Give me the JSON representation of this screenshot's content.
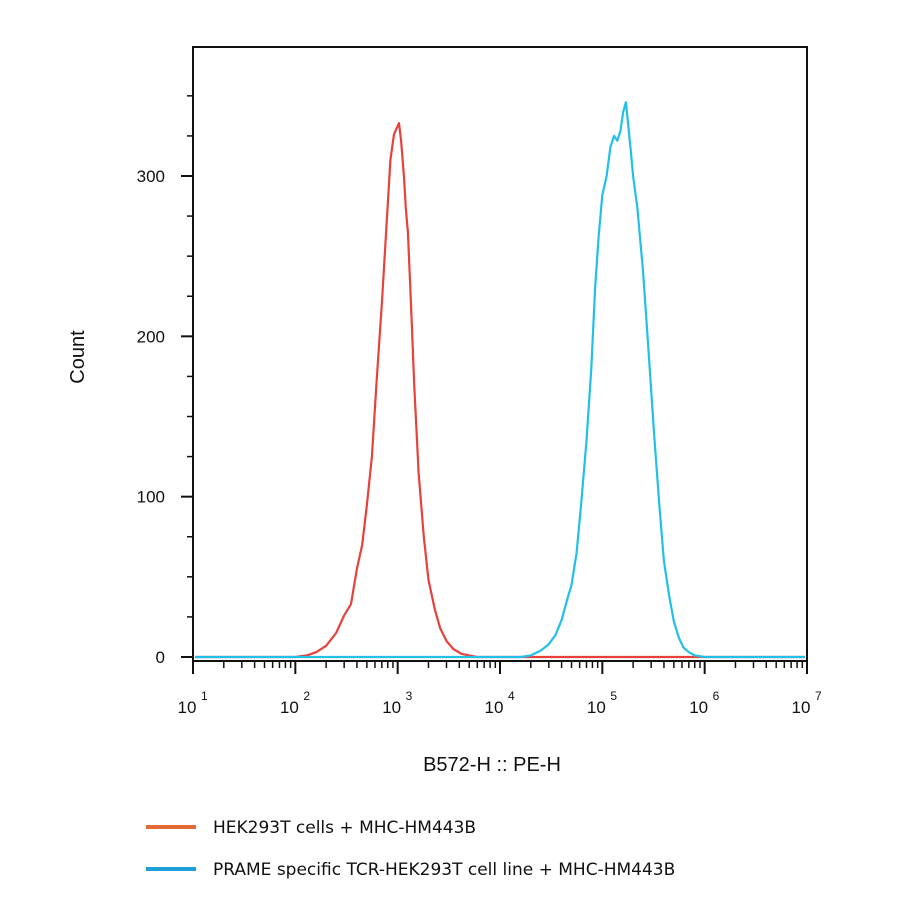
{
  "chart_data": {
    "type": "line",
    "title": "",
    "xlabel": "B572-H :: PE-H",
    "ylabel": "Count",
    "x_scale": "log",
    "xlim": [
      10,
      10000000
    ],
    "ylim": [
      0,
      350
    ],
    "x_ticks": [
      {
        "value": 10,
        "base": "10",
        "exp": "1"
      },
      {
        "value": 100,
        "base": "10",
        "exp": "2"
      },
      {
        "value": 1000,
        "base": "10",
        "exp": "3"
      },
      {
        "value": 10000,
        "base": "10",
        "exp": "4"
      },
      {
        "value": 100000,
        "base": "10",
        "exp": "5"
      },
      {
        "value": 1000000,
        "base": "10",
        "exp": "6"
      },
      {
        "value": 10000000,
        "base": "10",
        "exp": "7"
      }
    ],
    "y_ticks": [
      {
        "value": 0,
        "label": "0"
      },
      {
        "value": 100,
        "label": "100"
      },
      {
        "value": 200,
        "label": "200"
      },
      {
        "value": 300,
        "label": "300"
      }
    ],
    "grid": false,
    "legend_position": "bottom",
    "series": [
      {
        "name": "HEK293T cells + MHC-HM443B",
        "color": "#e8413c",
        "legend_color": "#e46a35",
        "x": [
          10,
          100,
          130,
          160,
          200,
          250,
          300,
          350,
          400,
          450,
          500,
          560,
          620,
          700,
          780,
          850,
          920,
          980,
          1030,
          1080,
          1150,
          1200,
          1260,
          1350,
          1450,
          1600,
          1800,
          2000,
          2300,
          2600,
          3000,
          3500,
          4200,
          5000,
          6000,
          10000000
        ],
        "values": [
          0,
          0,
          1,
          3,
          7,
          15,
          26,
          33,
          55,
          70,
          95,
          125,
          170,
          220,
          270,
          310,
          326,
          330,
          333,
          322,
          300,
          280,
          265,
          220,
          170,
          115,
          75,
          48,
          30,
          18,
          10,
          5,
          2,
          1,
          0,
          0
        ]
      },
      {
        "name": "PRAME specific TCR-HEK293T cell line + MHC-HM443B",
        "color": "#22c0e8",
        "legend_color": "#1e9fd6",
        "x": [
          10,
          16000,
          20000,
          25000,
          30000,
          35000,
          40000,
          45000,
          50000,
          56000,
          62000,
          70000,
          78000,
          85000,
          92000,
          100000,
          110000,
          120000,
          130000,
          140000,
          150000,
          160000,
          170000,
          180000,
          190000,
          200000,
          220000,
          250000,
          280000,
          320000,
          360000,
          400000,
          450000,
          500000,
          560000,
          620000,
          700000,
          800000,
          1000000,
          1500000,
          10000000
        ],
        "values": [
          0,
          0,
          1,
          4,
          8,
          14,
          23,
          35,
          45,
          65,
          95,
          135,
          180,
          230,
          262,
          288,
          300,
          318,
          325,
          322,
          328,
          340,
          346,
          330,
          315,
          300,
          280,
          240,
          195,
          140,
          95,
          60,
          38,
          22,
          12,
          6,
          3,
          1,
          0,
          0,
          0
        ]
      }
    ]
  }
}
